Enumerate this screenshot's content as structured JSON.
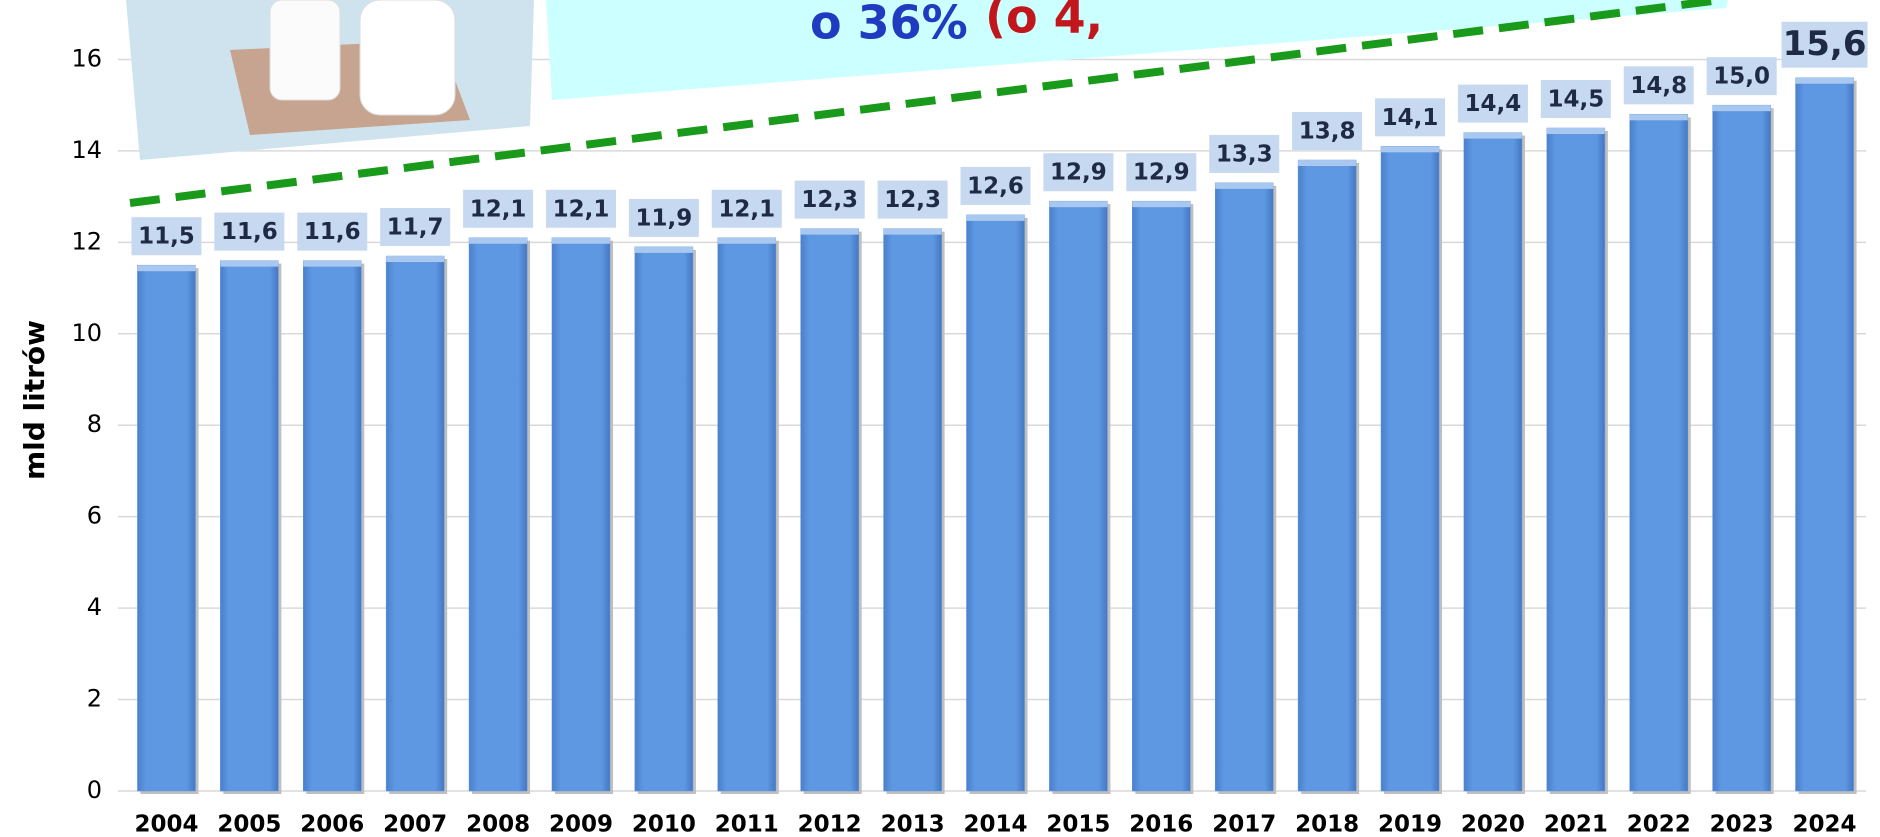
{
  "chart_data": {
    "type": "bar",
    "y_label": "mld litrów",
    "annotations": [
      "o 36%",
      "(o 4,"
    ],
    "categories": [
      "2004",
      "2005",
      "2006",
      "2007",
      "2008",
      "2009",
      "2010",
      "2011",
      "2012",
      "2013",
      "2014",
      "2015",
      "2016",
      "2017",
      "2018",
      "2019",
      "2020",
      "2021",
      "2022",
      "2023",
      "2024"
    ],
    "values": [
      11.5,
      11.6,
      11.6,
      11.7,
      12.1,
      12.1,
      11.9,
      12.1,
      12.3,
      12.3,
      12.6,
      12.9,
      12.9,
      13.3,
      13.8,
      14.1,
      14.4,
      14.5,
      14.8,
      15.0,
      15.6
    ],
    "value_labels": [
      "11,5",
      "11,6",
      "11,6",
      "11,7",
      "12,1",
      "12,1",
      "11,9",
      "12,1",
      "12,3",
      "12,3",
      "12,6",
      "12,9",
      "12,9",
      "13,3",
      "13,8",
      "14,1",
      "14,4",
      "14,5",
      "14,8",
      "15,0",
      "15,6"
    ],
    "color": "#5b96e0",
    "ylim": [
      0,
      17.3
    ],
    "yticks": [
      0,
      2,
      4,
      6,
      8,
      10,
      12,
      14,
      16
    ],
    "grid": true
  }
}
